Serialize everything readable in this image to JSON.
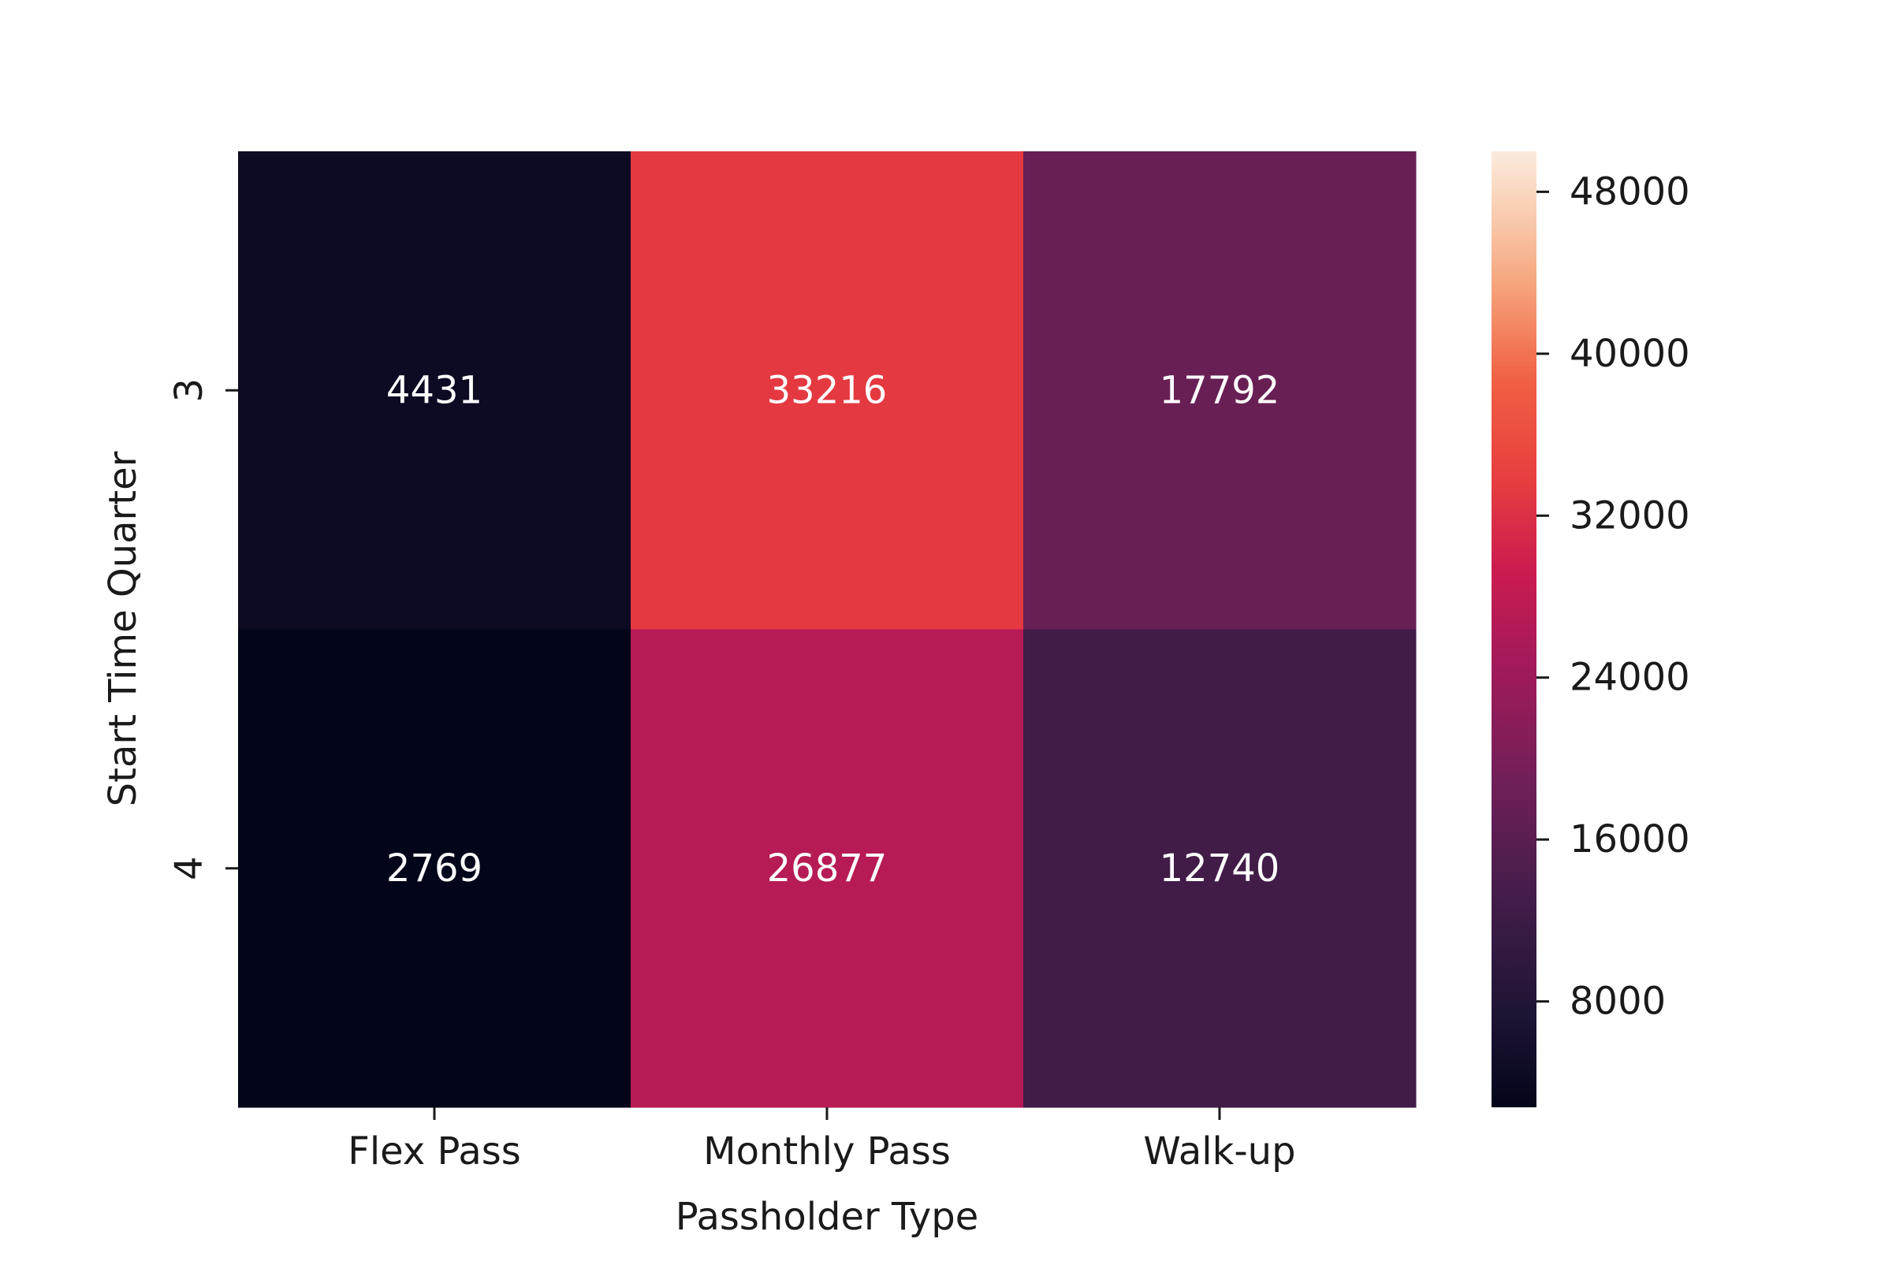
{
  "chart_data": {
    "type": "heatmap",
    "title": "",
    "xlabel": "Passholder Type",
    "ylabel": "Start Time Quarter",
    "x_categories": [
      "Flex Pass",
      "Monthly Pass",
      "Walk-up"
    ],
    "y_categories": [
      "3",
      "4"
    ],
    "values": [
      [
        4431,
        33216,
        17792
      ],
      [
        2769,
        26877,
        12740
      ]
    ],
    "colorbar": {
      "colormap": "rocket",
      "range": [
        2769,
        50000
      ],
      "ticks": [
        8000,
        16000,
        24000,
        32000,
        40000,
        48000
      ],
      "tick_labels": [
        "8000",
        "16000",
        "24000",
        "32000",
        "40000",
        "48000"
      ]
    },
    "annotations_color": "#ffffff"
  }
}
